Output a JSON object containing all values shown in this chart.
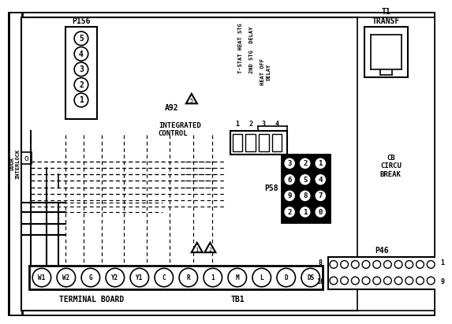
{
  "bg_color": "#ffffff",
  "fg_color": "#000000",
  "p156_label": "P156",
  "p156_pins": [
    "5",
    "4",
    "3",
    "2",
    "1"
  ],
  "a92_label": "A92",
  "a92_sub": "INTEGRATED\nCONTROL",
  "relay_col1": "T-STAT HEAT STG",
  "relay_col2": "2ND STG  DELAY",
  "relay_col3": "HEAT OFF\nDELAY",
  "relay_nums": [
    "1",
    "2",
    "3",
    "4"
  ],
  "p58_label": "P58",
  "p58_pins": [
    [
      "3",
      "2",
      "1"
    ],
    [
      "6",
      "5",
      "4"
    ],
    [
      "9",
      "8",
      "7"
    ],
    [
      "2",
      "1",
      "0"
    ]
  ],
  "t1_label": "T1\nTRANSF",
  "cb_label": "CB\nCIRCU\nBREAK",
  "p46_label": "P46",
  "terminal_labels": [
    "W1",
    "W2",
    "G",
    "Y2",
    "Y1",
    "C",
    "R",
    "1",
    "M",
    "L",
    "D",
    "DS"
  ],
  "terminal_board_label": "TERMINAL BOARD",
  "tb1_label": "TB1",
  "p46_nums_top_left": "8",
  "p46_nums_top_right": "1",
  "p46_nums_bot_left": "16",
  "p46_nums_bot_right": "9",
  "door_interlock": "DOOR\nINTERLOCK"
}
